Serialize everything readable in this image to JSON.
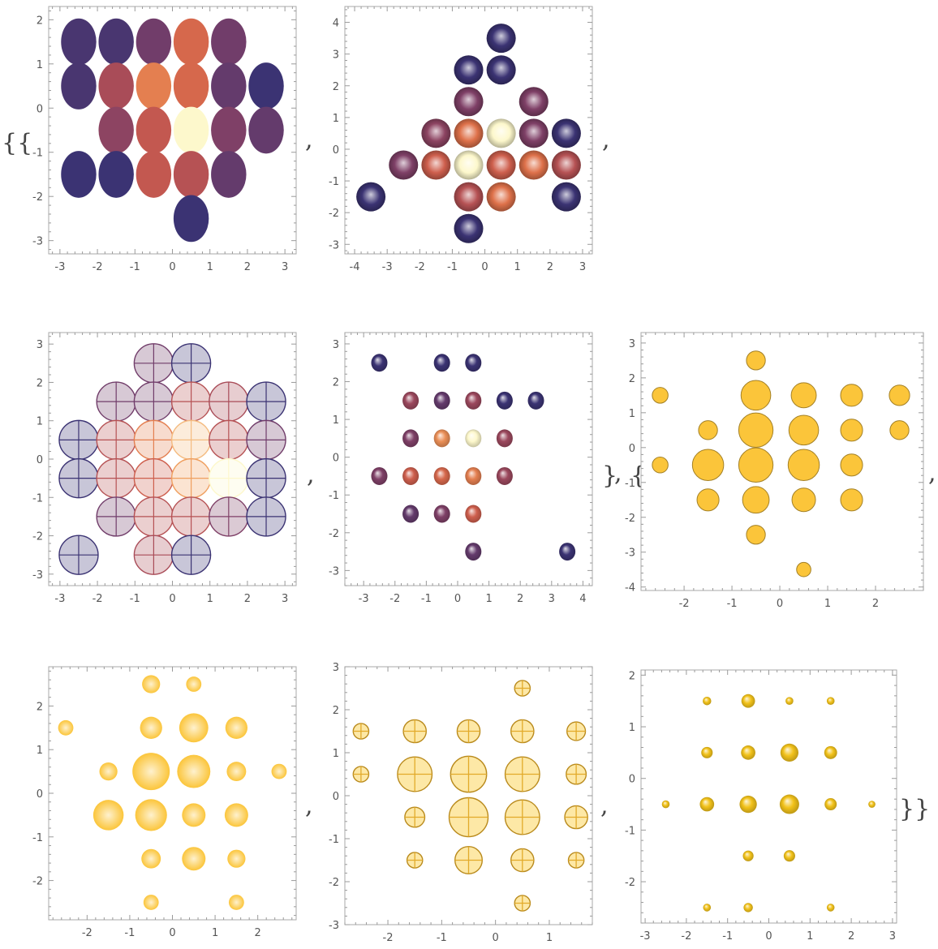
{
  "output": {
    "brackets": [
      "{{",
      "}",
      "{",
      "}}"
    ],
    "comma": ","
  },
  "palette": {
    "sunset": [
      "#2e3176",
      "#54386e",
      "#7b3f68",
      "#a34a5a",
      "#c95a4e",
      "#e0744a",
      "#f0a160",
      "#fdf8cc"
    ],
    "gold": "#fbc53a",
    "gold_edge": "#b98a1c",
    "gold_light": "#fde8a6",
    "frame": "#a9a9a9"
  },
  "chart_data": [
    {
      "type": "scatter",
      "style": "flat-sunset",
      "grid": false,
      "xlim": [
        -3.3,
        3.3
      ],
      "ylim": [
        -3.3,
        2.3
      ],
      "xticks": [
        "-3",
        "-2",
        "-1",
        "0",
        "1",
        "2",
        "3"
      ],
      "yticks": [
        "-3",
        "-2",
        "-1",
        "0",
        "1",
        "2"
      ],
      "points": [
        [
          -2.5,
          1.5,
          0.1
        ],
        [
          -1.5,
          1.5,
          0.1
        ],
        [
          -0.5,
          1.5,
          0.25
        ],
        [
          0.5,
          1.5,
          0.65
        ],
        [
          1.5,
          1.5,
          0.25
        ],
        [
          -2.5,
          0.5,
          0.1
        ],
        [
          -1.5,
          0.5,
          0.45
        ],
        [
          -0.5,
          0.5,
          0.75
        ],
        [
          0.5,
          0.5,
          0.65
        ],
        [
          1.5,
          0.5,
          0.2
        ],
        [
          2.5,
          0.5,
          0.05
        ],
        [
          -1.5,
          -0.5,
          0.35
        ],
        [
          -0.5,
          -0.5,
          0.55
        ],
        [
          0.5,
          -0.5,
          1.0
        ],
        [
          1.5,
          -0.5,
          0.3
        ],
        [
          2.5,
          -0.5,
          0.2
        ],
        [
          -2.5,
          -1.5,
          0.05
        ],
        [
          -1.5,
          -1.5,
          0.05
        ],
        [
          -0.5,
          -1.5,
          0.55
        ],
        [
          0.5,
          -1.5,
          0.5
        ],
        [
          1.5,
          -1.5,
          0.2
        ],
        [
          0.5,
          -2.5,
          0.05
        ]
      ]
    },
    {
      "type": "scatter",
      "style": "sphere-sunset",
      "grid": false,
      "xlim": [
        -4.3,
        3.3
      ],
      "ylim": [
        -3.3,
        4.5
      ],
      "xticks": [
        "-4",
        "-3",
        "-2",
        "-1",
        "0",
        "1",
        "2",
        "3"
      ],
      "yticks": [
        "-3",
        "-2",
        "-1",
        "0",
        "1",
        "2",
        "3",
        "4"
      ],
      "points": [
        [
          0.5,
          3.5,
          0.05
        ],
        [
          -0.5,
          2.5,
          0.05
        ],
        [
          0.5,
          2.5,
          0.05
        ],
        [
          -0.5,
          1.5,
          0.3
        ],
        [
          1.5,
          1.5,
          0.3
        ],
        [
          -1.5,
          0.5,
          0.35
        ],
        [
          -0.5,
          0.5,
          0.7
        ],
        [
          0.5,
          0.5,
          1.0
        ],
        [
          1.5,
          0.5,
          0.3
        ],
        [
          2.5,
          0.5,
          0.05
        ],
        [
          -2.5,
          -0.5,
          0.3
        ],
        [
          -1.5,
          -0.5,
          0.6
        ],
        [
          -0.5,
          -0.5,
          1.0
        ],
        [
          0.5,
          -0.5,
          0.6
        ],
        [
          1.5,
          -0.5,
          0.7
        ],
        [
          2.5,
          -0.5,
          0.5
        ],
        [
          -3.5,
          -1.5,
          0.05
        ],
        [
          -0.5,
          -1.5,
          0.5
        ],
        [
          0.5,
          -1.5,
          0.7
        ],
        [
          2.5,
          -1.5,
          0.05
        ],
        [
          -0.5,
          -2.5,
          0.05
        ]
      ]
    },
    {
      "type": "scatter",
      "style": "crosshair-sunset",
      "grid": false,
      "xlim": [
        -3.3,
        3.3
      ],
      "ylim": [
        -3.3,
        3.3
      ],
      "xticks": [
        "-3",
        "-2",
        "-1",
        "0",
        "1",
        "2",
        "3"
      ],
      "yticks": [
        "-3",
        "-2",
        "-1",
        "0",
        "1",
        "2",
        "3"
      ],
      "points": [
        [
          -0.5,
          2.5,
          0.25
        ],
        [
          0.5,
          2.5,
          0.05
        ],
        [
          -1.5,
          1.5,
          0.25
        ],
        [
          -0.5,
          1.5,
          0.25
        ],
        [
          0.5,
          1.5,
          0.5
        ],
        [
          1.5,
          1.5,
          0.45
        ],
        [
          2.5,
          1.5,
          0.05
        ],
        [
          -2.5,
          0.5,
          0.05
        ],
        [
          -1.5,
          0.5,
          0.5
        ],
        [
          -0.5,
          0.5,
          0.75
        ],
        [
          0.5,
          0.5,
          0.9
        ],
        [
          1.5,
          0.5,
          0.5
        ],
        [
          2.5,
          0.5,
          0.25
        ],
        [
          -2.5,
          -0.5,
          0.05
        ],
        [
          -1.5,
          -0.5,
          0.5
        ],
        [
          -0.5,
          -0.5,
          0.6
        ],
        [
          0.5,
          -0.5,
          0.85
        ],
        [
          1.5,
          -0.5,
          1.0
        ],
        [
          2.5,
          -0.5,
          0.05
        ],
        [
          -1.5,
          -1.5,
          0.25
        ],
        [
          -0.5,
          -1.5,
          0.5
        ],
        [
          0.5,
          -1.5,
          0.5
        ],
        [
          1.5,
          -1.5,
          0.3
        ],
        [
          2.5,
          -1.5,
          0.05
        ],
        [
          -2.5,
          -2.5,
          0.05
        ],
        [
          -0.5,
          -2.5,
          0.45
        ],
        [
          0.5,
          -2.5,
          0.05
        ]
      ]
    },
    {
      "type": "scatter",
      "style": "small-sphere-sunset",
      "grid": false,
      "xlim": [
        -3.6,
        4.3
      ],
      "ylim": [
        -3.4,
        3.3
      ],
      "xticks": [
        "-3",
        "-2",
        "-1",
        "0",
        "1",
        "2",
        "3",
        "4"
      ],
      "yticks": [
        "-3",
        "-2",
        "-1",
        "0",
        "1",
        "2",
        "3"
      ],
      "points": [
        [
          -2.5,
          2.5,
          0.05
        ],
        [
          -0.5,
          2.5,
          0.05
        ],
        [
          0.5,
          2.5,
          0.05
        ],
        [
          -1.5,
          1.5,
          0.4
        ],
        [
          -0.5,
          1.5,
          0.2
        ],
        [
          0.5,
          1.5,
          0.4
        ],
        [
          1.5,
          1.5,
          0.05
        ],
        [
          2.5,
          1.5,
          0.05
        ],
        [
          -1.5,
          0.5,
          0.3
        ],
        [
          -0.5,
          0.5,
          0.8
        ],
        [
          0.5,
          0.5,
          1.0
        ],
        [
          1.5,
          0.5,
          0.4
        ],
        [
          -2.5,
          -0.5,
          0.3
        ],
        [
          -1.5,
          -0.5,
          0.6
        ],
        [
          -0.5,
          -0.5,
          0.65
        ],
        [
          0.5,
          -0.5,
          0.75
        ],
        [
          1.5,
          -0.5,
          0.4
        ],
        [
          -1.5,
          -1.5,
          0.2
        ],
        [
          -0.5,
          -1.5,
          0.3
        ],
        [
          0.5,
          -1.5,
          0.6
        ],
        [
          0.5,
          -2.5,
          0.2
        ],
        [
          3.5,
          -2.5,
          0.05
        ]
      ]
    },
    {
      "type": "bubble",
      "style": "flat-gold",
      "grid": false,
      "xlim": [
        -2.9,
        3.0
      ],
      "ylim": [
        -4.1,
        3.3
      ],
      "xticks": [
        "-2",
        "-1",
        "0",
        "1",
        "2"
      ],
      "yticks": [
        "-4",
        "-3",
        "-2",
        "-1",
        "0",
        "1",
        "2",
        "3"
      ],
      "points": [
        [
          -0.5,
          2.5,
          0.35
        ],
        [
          -2.5,
          1.5,
          0.25
        ],
        [
          -0.5,
          1.5,
          0.7
        ],
        [
          0.5,
          1.5,
          0.55
        ],
        [
          1.5,
          1.5,
          0.45
        ],
        [
          2.5,
          1.5,
          0.4
        ],
        [
          -1.5,
          0.5,
          0.35
        ],
        [
          -0.5,
          0.5,
          0.85
        ],
        [
          0.5,
          0.5,
          0.7
        ],
        [
          1.5,
          0.5,
          0.45
        ],
        [
          2.5,
          0.5,
          0.35
        ],
        [
          -2.5,
          -0.5,
          0.25
        ],
        [
          -1.5,
          -0.5,
          0.75
        ],
        [
          -0.5,
          -0.5,
          0.85
        ],
        [
          0.5,
          -0.5,
          0.75
        ],
        [
          1.5,
          -0.5,
          0.45
        ],
        [
          -1.5,
          -1.5,
          0.45
        ],
        [
          -0.5,
          -1.5,
          0.6
        ],
        [
          0.5,
          -1.5,
          0.5
        ],
        [
          1.5,
          -1.5,
          0.45
        ],
        [
          -0.5,
          -2.5,
          0.35
        ],
        [
          0.5,
          -3.5,
          0.2
        ]
      ]
    },
    {
      "type": "bubble",
      "style": "soft-gold",
      "grid": false,
      "xlim": [
        -2.9,
        2.9
      ],
      "ylim": [
        -2.9,
        2.9
      ],
      "xticks": [
        "-2",
        "-1",
        "0",
        "1",
        "2"
      ],
      "yticks": [
        "-2",
        "-1",
        "0",
        "1",
        "2"
      ],
      "points": [
        [
          -0.5,
          2.5,
          0.3
        ],
        [
          0.5,
          2.5,
          0.2
        ],
        [
          -2.5,
          1.5,
          0.2
        ],
        [
          -0.5,
          1.5,
          0.45
        ],
        [
          0.5,
          1.5,
          0.7
        ],
        [
          1.5,
          1.5,
          0.45
        ],
        [
          -1.5,
          0.5,
          0.3
        ],
        [
          -0.5,
          0.5,
          1.0
        ],
        [
          0.5,
          0.5,
          0.85
        ],
        [
          1.5,
          0.5,
          0.35
        ],
        [
          2.5,
          0.5,
          0.2
        ],
        [
          -1.5,
          -0.5,
          0.75
        ],
        [
          -0.5,
          -0.5,
          0.8
        ],
        [
          0.5,
          -0.5,
          0.5
        ],
        [
          1.5,
          -0.5,
          0.5
        ],
        [
          -0.5,
          -1.5,
          0.35
        ],
        [
          0.5,
          -1.5,
          0.5
        ],
        [
          1.5,
          -1.5,
          0.3
        ],
        [
          -0.5,
          -2.5,
          0.2
        ],
        [
          1.5,
          -2.5,
          0.2
        ]
      ]
    },
    {
      "type": "bubble",
      "style": "crosshair-gold",
      "grid": false,
      "xlim": [
        -2.8,
        1.8
      ],
      "ylim": [
        -3.0,
        3.0
      ],
      "xticks": [
        "-2",
        "-1",
        "0",
        "1"
      ],
      "yticks": [
        "-3",
        "-2",
        "-1",
        "0",
        "1",
        "2",
        "3"
      ],
      "points": [
        [
          0.5,
          2.5,
          0.2
        ],
        [
          -2.5,
          1.5,
          0.2
        ],
        [
          -1.5,
          1.5,
          0.45
        ],
        [
          -0.5,
          1.5,
          0.45
        ],
        [
          0.5,
          1.5,
          0.45
        ],
        [
          1.5,
          1.5,
          0.3
        ],
        [
          -2.5,
          0.5,
          0.2
        ],
        [
          -1.5,
          0.5,
          0.85
        ],
        [
          -0.5,
          0.5,
          0.9
        ],
        [
          0.5,
          0.5,
          0.85
        ],
        [
          1.5,
          0.5,
          0.35
        ],
        [
          -1.5,
          -0.5,
          0.35
        ],
        [
          -0.5,
          -0.5,
          1.0
        ],
        [
          0.5,
          -0.5,
          0.85
        ],
        [
          1.5,
          -0.5,
          0.45
        ],
        [
          -1.5,
          -1.5,
          0.2
        ],
        [
          -0.5,
          -1.5,
          0.6
        ],
        [
          0.5,
          -1.5,
          0.45
        ],
        [
          1.5,
          -1.5,
          0.2
        ],
        [
          0.5,
          -2.5,
          0.2
        ]
      ]
    },
    {
      "type": "bubble",
      "style": "sphere-gold",
      "grid": false,
      "xlim": [
        -3.1,
        3.1
      ],
      "ylim": [
        -2.8,
        2.1
      ],
      "xticks": [
        "-3",
        "-2",
        "-1",
        "0",
        "1",
        "2",
        "3"
      ],
      "yticks": [
        "-2",
        "-1",
        "0",
        "1",
        "2"
      ],
      "points": [
        [
          -1.5,
          1.5,
          0.25
        ],
        [
          -0.5,
          1.5,
          0.6
        ],
        [
          0.5,
          1.5,
          0.2
        ],
        [
          1.5,
          1.5,
          0.2
        ],
        [
          -1.5,
          0.5,
          0.45
        ],
        [
          -0.5,
          0.5,
          0.65
        ],
        [
          0.5,
          0.5,
          0.9
        ],
        [
          1.5,
          0.5,
          0.55
        ],
        [
          -2.5,
          -0.5,
          0.2
        ],
        [
          -1.5,
          -0.5,
          0.65
        ],
        [
          -0.5,
          -0.5,
          0.85
        ],
        [
          0.5,
          -0.5,
          1.0
        ],
        [
          1.5,
          -0.5,
          0.5
        ],
        [
          2.5,
          -0.5,
          0.15
        ],
        [
          -0.5,
          -1.5,
          0.4
        ],
        [
          0.5,
          -1.5,
          0.45
        ],
        [
          -1.5,
          -2.5,
          0.2
        ],
        [
          -0.5,
          -2.5,
          0.3
        ],
        [
          1.5,
          -2.5,
          0.2
        ]
      ]
    }
  ]
}
